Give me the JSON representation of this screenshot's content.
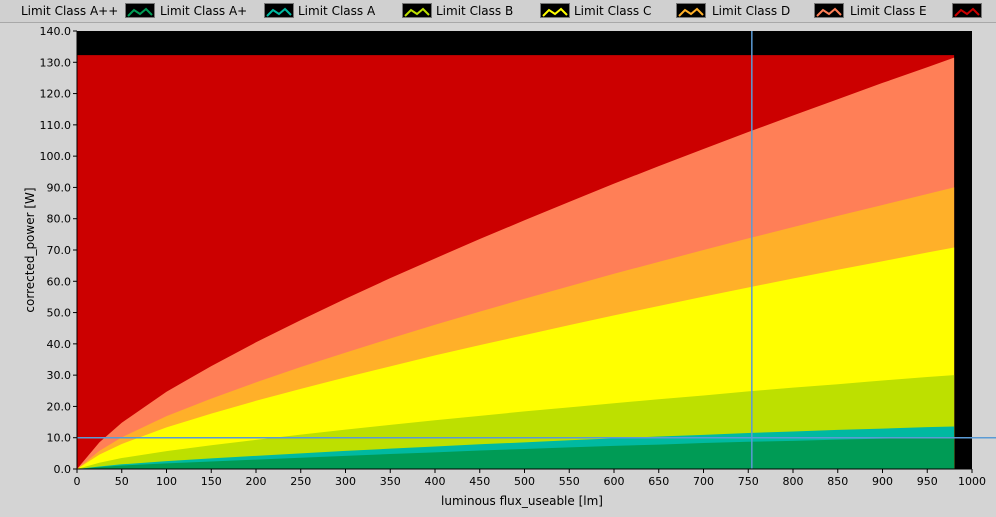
{
  "legend": {
    "items": [
      {
        "label": "Limit Class A++",
        "color": "#009b55"
      },
      {
        "label": "Limit Class A+",
        "color": "#00b9a1"
      },
      {
        "label": "Limit Class A",
        "color": "#bde000"
      },
      {
        "label": "Limit Class B",
        "color": "#ffff00"
      },
      {
        "label": "Limit Class C",
        "color": "#ffb029"
      },
      {
        "label": "Limit Class D",
        "color": "#ff7f57"
      },
      {
        "label": "Limit Class E",
        "color": "#cc0000"
      }
    ]
  },
  "chart_data": {
    "type": "area",
    "xlabel": "luminous flux_useable [lm]",
    "ylabel": "corrected_power [W]",
    "xlim": [
      0,
      1000
    ],
    "ylim": [
      0,
      140
    ],
    "x_ticks": [
      "0",
      "50",
      "100",
      "150",
      "200",
      "250",
      "300",
      "350",
      "400",
      "450",
      "500",
      "550",
      "600",
      "650",
      "700",
      "750",
      "800",
      "850",
      "900",
      "950",
      "1000"
    ],
    "y_ticks": [
      "0.0",
      "10.0",
      "20.0",
      "30.0",
      "40.0",
      "50.0",
      "60.0",
      "70.0",
      "80.0",
      "90.0",
      "100.0",
      "110.0",
      "120.0",
      "130.0",
      "140.0"
    ],
    "x": [
      0,
      25,
      50,
      100,
      150,
      200,
      250,
      300,
      350,
      400,
      450,
      500,
      550,
      600,
      650,
      700,
      750,
      800,
      850,
      900,
      950,
      980
    ],
    "series": [
      {
        "name": "Limit Class A++",
        "color": "#009b55",
        "values": [
          0,
          0.6,
          1.1,
          1.8,
          2.4,
          3.0,
          3.6,
          4.2,
          4.8,
          5.3,
          5.9,
          6.4,
          6.9,
          7.4,
          7.8,
          8.3,
          8.7,
          9.0,
          9.4,
          9.7,
          10.0,
          10.2
        ]
      },
      {
        "name": "Limit Class A+",
        "color": "#00b9a1",
        "values": [
          0,
          0.8,
          1.5,
          2.5,
          3.4,
          4.2,
          5.0,
          5.8,
          6.5,
          7.2,
          7.9,
          8.5,
          9.2,
          9.8,
          10.4,
          10.9,
          11.5,
          12.0,
          12.5,
          12.9,
          13.4,
          13.6
        ]
      },
      {
        "name": "Limit Class A",
        "color": "#bde000",
        "values": [
          0,
          2.0,
          3.5,
          5.7,
          7.6,
          9.3,
          11.0,
          12.6,
          14.1,
          15.6,
          17.0,
          18.4,
          19.7,
          21.0,
          22.3,
          23.5,
          24.8,
          26.0,
          27.1,
          28.3,
          29.4,
          30.0
        ]
      },
      {
        "name": "Limit Class B",
        "color": "#ffff00",
        "values": [
          0,
          4.6,
          8.0,
          13.3,
          17.7,
          21.8,
          25.6,
          29.3,
          32.8,
          36.3,
          39.6,
          42.8,
          46.0,
          49.1,
          52.1,
          55.1,
          58.0,
          60.9,
          63.7,
          66.4,
          69.2,
          70.8
        ]
      },
      {
        "name": "Limit Class C",
        "color": "#ffb029",
        "values": [
          0,
          5.8,
          10.1,
          16.9,
          22.5,
          27.7,
          32.6,
          37.2,
          41.7,
          46.1,
          50.3,
          54.4,
          58.4,
          62.4,
          66.2,
          70.0,
          73.7,
          77.3,
          80.9,
          84.4,
          87.9,
          90.0
        ]
      },
      {
        "name": "Limit Class D",
        "color": "#ff7f57",
        "values": [
          0,
          8.5,
          14.8,
          24.7,
          32.9,
          40.5,
          47.6,
          54.4,
          61.0,
          67.3,
          73.5,
          79.5,
          85.4,
          91.2,
          96.8,
          102.3,
          107.7,
          113.0,
          118.2,
          123.4,
          128.4,
          131.5
        ]
      },
      {
        "name": "Limit Class E",
        "color": "#cc0000",
        "values": [
          132.3,
          132.3,
          132.3,
          132.3,
          132.3,
          132.3,
          132.3,
          132.3,
          132.3,
          132.3,
          132.3,
          132.3,
          132.3,
          132.3,
          132.3,
          132.3,
          132.3,
          132.3,
          132.3,
          132.3,
          132.3,
          132.3
        ]
      }
    ],
    "cursor": {
      "x": 754,
      "y": 10.0,
      "color": "#5b9bd5"
    },
    "plot_background": "#000000",
    "grid": false
  }
}
